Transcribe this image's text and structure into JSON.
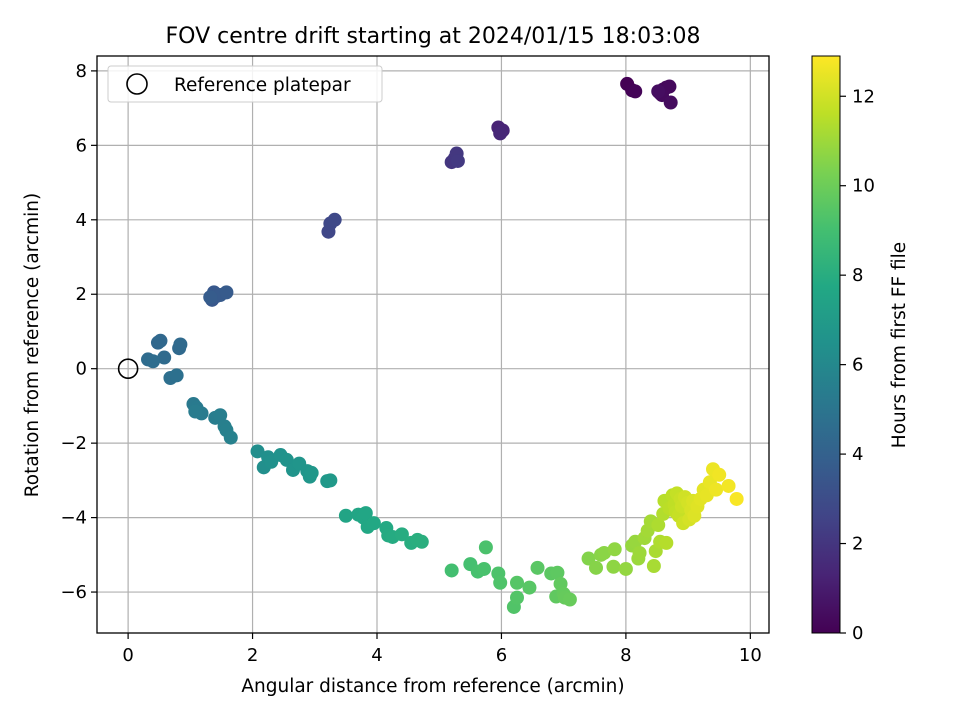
{
  "chart_data": {
    "type": "scatter",
    "title": "FOV centre drift starting at 2024/01/15 18:03:08",
    "xlabel": "Angular distance from reference (arcmin)",
    "ylabel": "Rotation from reference (arcmin)",
    "xlim": [
      -0.5,
      10.3
    ],
    "ylim": [
      -7.1,
      8.4
    ],
    "xticks": [
      0,
      2,
      4,
      6,
      8,
      10
    ],
    "yticks": [
      -6,
      -4,
      -2,
      0,
      2,
      4,
      6,
      8
    ],
    "xtick_labels": [
      "0",
      "2",
      "4",
      "6",
      "8",
      "10"
    ],
    "ytick_labels": [
      "−6",
      "−4",
      "−2",
      "0",
      "2",
      "4",
      "6",
      "8"
    ],
    "grid": true,
    "colormap": "viridis",
    "colorbar": {
      "label": "Hours from first FF file",
      "range": [
        0,
        12.9
      ],
      "ticks": [
        0,
        2,
        4,
        6,
        8,
        10,
        12
      ],
      "tick_labels": [
        "0",
        "2",
        "4",
        "6",
        "8",
        "10",
        "12"
      ]
    },
    "legend": {
      "position": "upper-left",
      "entries": [
        "Reference platepar"
      ]
    },
    "reference_point": {
      "x": 0,
      "y": 0
    },
    "points": [
      {
        "x": 8.02,
        "y": 7.65,
        "c": 0.0
      },
      {
        "x": 8.1,
        "y": 7.48,
        "c": 0.05
      },
      {
        "x": 8.15,
        "y": 7.45,
        "c": 0.1
      },
      {
        "x": 8.55,
        "y": 7.4,
        "c": 0.15
      },
      {
        "x": 8.6,
        "y": 7.5,
        "c": 0.2
      },
      {
        "x": 8.65,
        "y": 7.55,
        "c": 0.25
      },
      {
        "x": 8.7,
        "y": 7.58,
        "c": 0.3
      },
      {
        "x": 8.58,
        "y": 7.35,
        "c": 0.35
      },
      {
        "x": 8.72,
        "y": 7.15,
        "c": 0.4
      },
      {
        "x": 8.52,
        "y": 7.45,
        "c": 0.45
      },
      {
        "x": 5.95,
        "y": 6.48,
        "c": 1.3
      },
      {
        "x": 6.02,
        "y": 6.4,
        "c": 1.35
      },
      {
        "x": 5.98,
        "y": 6.32,
        "c": 1.4
      },
      {
        "x": 5.2,
        "y": 5.55,
        "c": 2.0
      },
      {
        "x": 5.25,
        "y": 5.65,
        "c": 2.05
      },
      {
        "x": 5.28,
        "y": 5.78,
        "c": 2.1
      },
      {
        "x": 5.3,
        "y": 5.58,
        "c": 2.15
      },
      {
        "x": 3.22,
        "y": 3.68,
        "c": 2.7
      },
      {
        "x": 3.25,
        "y": 3.9,
        "c": 2.75
      },
      {
        "x": 3.32,
        "y": 4.0,
        "c": 2.8
      },
      {
        "x": 1.35,
        "y": 1.85,
        "c": 3.5
      },
      {
        "x": 1.38,
        "y": 2.05,
        "c": 3.55
      },
      {
        "x": 1.42,
        "y": 1.95,
        "c": 3.6
      },
      {
        "x": 1.48,
        "y": 1.98,
        "c": 3.65
      },
      {
        "x": 1.58,
        "y": 2.05,
        "c": 3.7
      },
      {
        "x": 1.32,
        "y": 1.92,
        "c": 3.75
      },
      {
        "x": 0.48,
        "y": 0.7,
        "c": 4.3
      },
      {
        "x": 0.52,
        "y": 0.75,
        "c": 4.35
      },
      {
        "x": 0.82,
        "y": 0.55,
        "c": 4.4
      },
      {
        "x": 0.84,
        "y": 0.65,
        "c": 4.45
      },
      {
        "x": 0.58,
        "y": 0.3,
        "c": 4.5
      },
      {
        "x": 0.32,
        "y": 0.25,
        "c": 4.55
      },
      {
        "x": 0.4,
        "y": 0.2,
        "c": 4.6
      },
      {
        "x": 0.68,
        "y": -0.25,
        "c": 4.7
      },
      {
        "x": 0.78,
        "y": -0.18,
        "c": 4.75
      },
      {
        "x": 1.05,
        "y": -0.95,
        "c": 5.2
      },
      {
        "x": 1.1,
        "y": -1.05,
        "c": 5.25
      },
      {
        "x": 1.18,
        "y": -1.2,
        "c": 5.3
      },
      {
        "x": 1.08,
        "y": -1.15,
        "c": 5.35
      },
      {
        "x": 1.4,
        "y": -1.32,
        "c": 5.4
      },
      {
        "x": 1.48,
        "y": -1.25,
        "c": 5.45
      },
      {
        "x": 1.55,
        "y": -1.55,
        "c": 5.5
      },
      {
        "x": 1.58,
        "y": -1.65,
        "c": 5.55
      },
      {
        "x": 1.65,
        "y": -1.85,
        "c": 5.6
      },
      {
        "x": 2.08,
        "y": -2.22,
        "c": 6.3
      },
      {
        "x": 2.18,
        "y": -2.65,
        "c": 6.35
      },
      {
        "x": 2.25,
        "y": -2.38,
        "c": 6.4
      },
      {
        "x": 2.3,
        "y": -2.5,
        "c": 6.45
      },
      {
        "x": 2.45,
        "y": -2.32,
        "c": 6.5
      },
      {
        "x": 2.55,
        "y": -2.45,
        "c": 6.55
      },
      {
        "x": 2.65,
        "y": -2.72,
        "c": 6.6
      },
      {
        "x": 2.75,
        "y": -2.55,
        "c": 6.65
      },
      {
        "x": 2.88,
        "y": -2.75,
        "c": 6.7
      },
      {
        "x": 2.92,
        "y": -2.9,
        "c": 6.75
      },
      {
        "x": 2.95,
        "y": -2.8,
        "c": 6.8
      },
      {
        "x": 3.2,
        "y": -3.02,
        "c": 6.85
      },
      {
        "x": 3.25,
        "y": -3.0,
        "c": 6.9
      },
      {
        "x": 3.5,
        "y": -3.95,
        "c": 7.5
      },
      {
        "x": 3.7,
        "y": -3.92,
        "c": 7.55
      },
      {
        "x": 3.78,
        "y": -4.0,
        "c": 7.6
      },
      {
        "x": 3.82,
        "y": -3.88,
        "c": 7.65
      },
      {
        "x": 3.85,
        "y": -4.25,
        "c": 7.7
      },
      {
        "x": 3.95,
        "y": -4.15,
        "c": 7.75
      },
      {
        "x": 4.15,
        "y": -4.28,
        "c": 7.8
      },
      {
        "x": 4.18,
        "y": -4.48,
        "c": 7.85
      },
      {
        "x": 4.25,
        "y": -4.52,
        "c": 7.9
      },
      {
        "x": 4.4,
        "y": -4.45,
        "c": 7.95
      },
      {
        "x": 4.55,
        "y": -4.68,
        "c": 8.0
      },
      {
        "x": 4.65,
        "y": -4.6,
        "c": 8.05
      },
      {
        "x": 4.72,
        "y": -4.65,
        "c": 8.1
      },
      {
        "x": 5.2,
        "y": -5.42,
        "c": 9.0
      },
      {
        "x": 5.5,
        "y": -5.25,
        "c": 9.05
      },
      {
        "x": 5.62,
        "y": -5.45,
        "c": 9.1
      },
      {
        "x": 5.72,
        "y": -5.38,
        "c": 9.15
      },
      {
        "x": 5.75,
        "y": -4.8,
        "c": 9.2
      },
      {
        "x": 5.95,
        "y": -5.5,
        "c": 9.25
      },
      {
        "x": 5.98,
        "y": -5.75,
        "c": 9.3
      },
      {
        "x": 6.2,
        "y": -6.4,
        "c": 9.35
      },
      {
        "x": 6.25,
        "y": -6.15,
        "c": 9.4
      },
      {
        "x": 6.25,
        "y": -5.75,
        "c": 9.45
      },
      {
        "x": 6.45,
        "y": -5.88,
        "c": 9.5
      },
      {
        "x": 6.58,
        "y": -5.35,
        "c": 9.55
      },
      {
        "x": 6.8,
        "y": -5.5,
        "c": 9.6
      },
      {
        "x": 6.9,
        "y": -5.48,
        "c": 9.65
      },
      {
        "x": 6.88,
        "y": -6.12,
        "c": 9.7
      },
      {
        "x": 6.95,
        "y": -5.78,
        "c": 9.75
      },
      {
        "x": 7.0,
        "y": -6.05,
        "c": 9.8
      },
      {
        "x": 7.02,
        "y": -6.15,
        "c": 9.85
      },
      {
        "x": 7.1,
        "y": -6.2,
        "c": 9.9
      },
      {
        "x": 7.4,
        "y": -5.1,
        "c": 10.5
      },
      {
        "x": 7.52,
        "y": -5.35,
        "c": 10.55
      },
      {
        "x": 7.6,
        "y": -5.0,
        "c": 10.6
      },
      {
        "x": 7.65,
        "y": -4.95,
        "c": 10.65
      },
      {
        "x": 7.8,
        "y": -5.32,
        "c": 10.7
      },
      {
        "x": 7.82,
        "y": -4.85,
        "c": 10.75
      },
      {
        "x": 8.0,
        "y": -5.38,
        "c": 10.8
      },
      {
        "x": 8.1,
        "y": -4.75,
        "c": 10.85
      },
      {
        "x": 8.15,
        "y": -4.65,
        "c": 10.9
      },
      {
        "x": 8.2,
        "y": -5.1,
        "c": 10.95
      },
      {
        "x": 8.22,
        "y": -4.95,
        "c": 11.0
      },
      {
        "x": 8.3,
        "y": -4.55,
        "c": 11.05
      },
      {
        "x": 8.35,
        "y": -4.35,
        "c": 11.1
      },
      {
        "x": 8.4,
        "y": -4.1,
        "c": 11.15
      },
      {
        "x": 8.45,
        "y": -5.3,
        "c": 11.2
      },
      {
        "x": 8.48,
        "y": -4.9,
        "c": 11.25
      },
      {
        "x": 8.52,
        "y": -4.2,
        "c": 11.3
      },
      {
        "x": 8.55,
        "y": -4.65,
        "c": 11.35
      },
      {
        "x": 8.6,
        "y": -3.9,
        "c": 11.4
      },
      {
        "x": 8.65,
        "y": -4.68,
        "c": 11.45
      },
      {
        "x": 8.62,
        "y": -3.55,
        "c": 11.5
      },
      {
        "x": 8.7,
        "y": -3.75,
        "c": 11.55
      },
      {
        "x": 8.75,
        "y": -3.4,
        "c": 11.6
      },
      {
        "x": 8.78,
        "y": -3.65,
        "c": 11.65
      },
      {
        "x": 8.8,
        "y": -3.85,
        "c": 11.7
      },
      {
        "x": 8.82,
        "y": -3.35,
        "c": 11.75
      },
      {
        "x": 8.85,
        "y": -3.95,
        "c": 11.8
      },
      {
        "x": 8.88,
        "y": -3.5,
        "c": 11.85
      },
      {
        "x": 8.9,
        "y": -3.7,
        "c": 11.9
      },
      {
        "x": 8.92,
        "y": -4.15,
        "c": 11.95
      },
      {
        "x": 8.95,
        "y": -3.45,
        "c": 12.0
      },
      {
        "x": 9.0,
        "y": -3.6,
        "c": 12.05
      },
      {
        "x": 9.02,
        "y": -4.05,
        "c": 12.1
      },
      {
        "x": 9.05,
        "y": -3.8,
        "c": 12.15
      },
      {
        "x": 9.08,
        "y": -3.55,
        "c": 12.2
      },
      {
        "x": 9.1,
        "y": -3.95,
        "c": 12.25
      },
      {
        "x": 9.15,
        "y": -3.7,
        "c": 12.3
      },
      {
        "x": 9.2,
        "y": -3.5,
        "c": 12.35
      },
      {
        "x": 9.25,
        "y": -3.25,
        "c": 12.4
      },
      {
        "x": 9.3,
        "y": -3.4,
        "c": 12.45
      },
      {
        "x": 9.35,
        "y": -3.05,
        "c": 12.5
      },
      {
        "x": 9.4,
        "y": -2.7,
        "c": 12.55
      },
      {
        "x": 9.45,
        "y": -3.25,
        "c": 12.6
      },
      {
        "x": 9.5,
        "y": -2.85,
        "c": 12.65
      },
      {
        "x": 9.65,
        "y": -3.15,
        "c": 12.7
      },
      {
        "x": 9.78,
        "y": -3.5,
        "c": 12.8
      }
    ]
  }
}
